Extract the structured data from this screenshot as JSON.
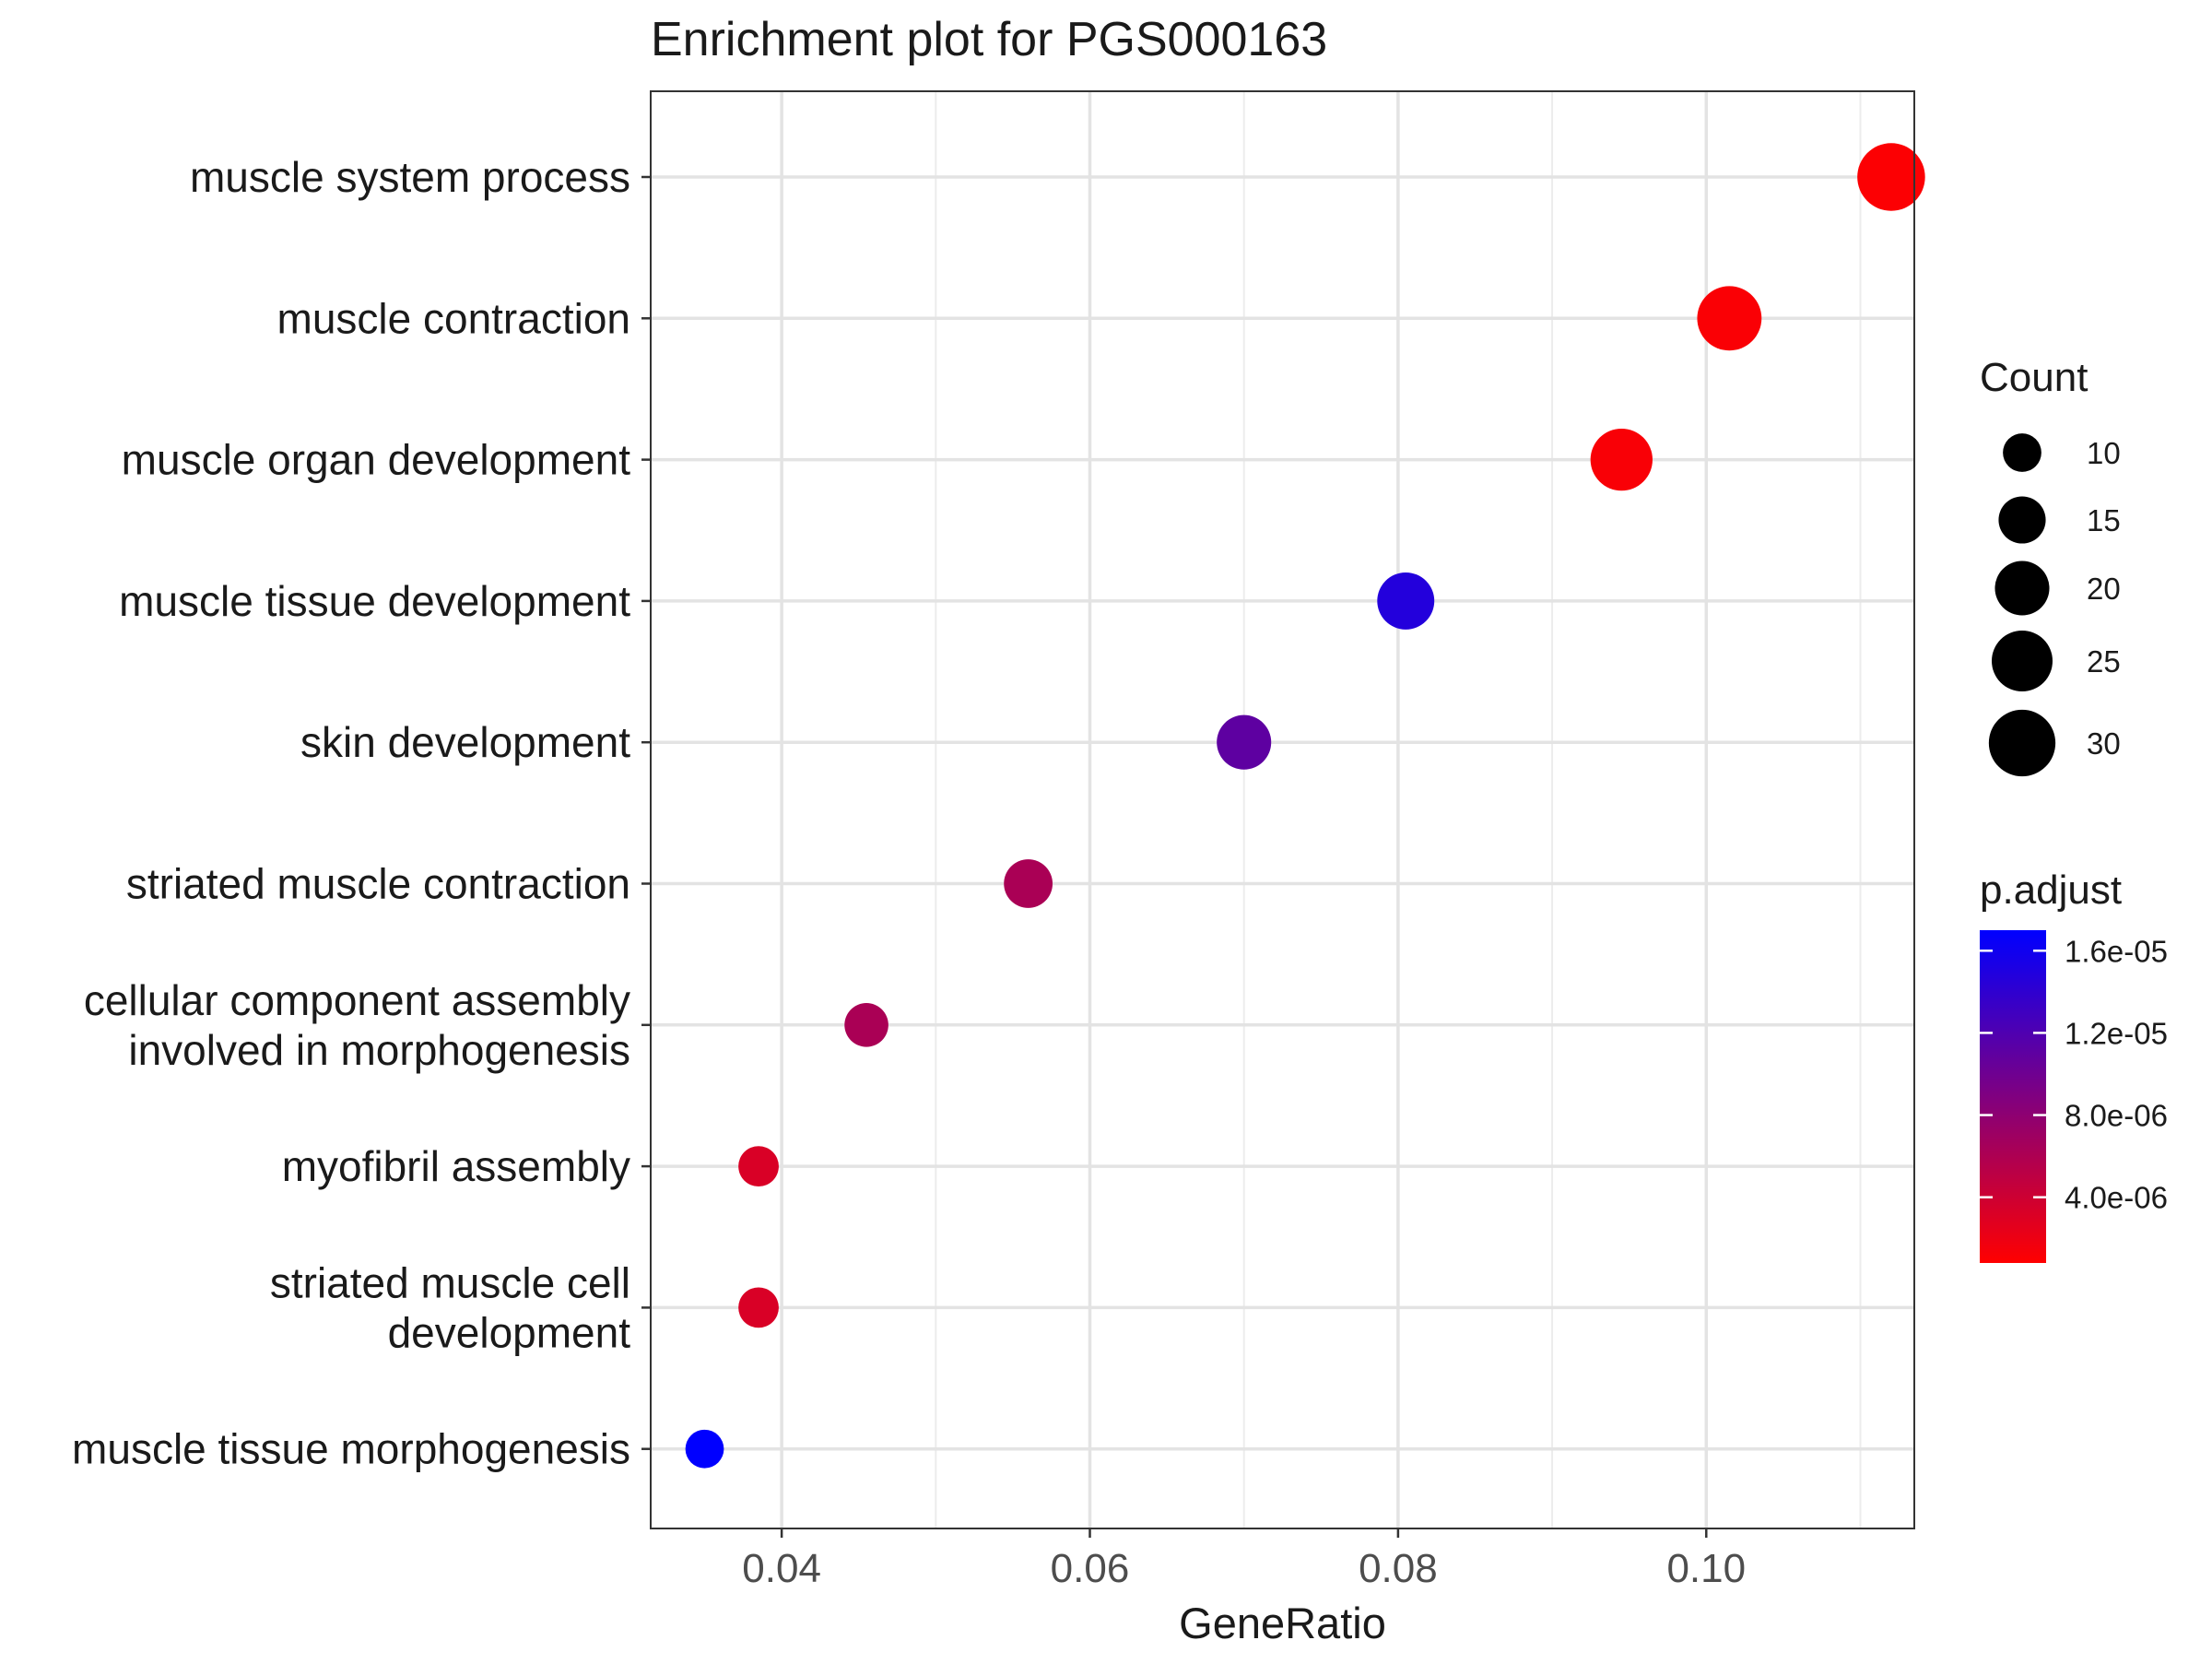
{
  "chart_data": {
    "type": "scatter",
    "title": "Enrichment plot for PGS000163",
    "xlabel": "GeneRatio",
    "ylabel": "",
    "xlim": [
      0.0315,
      0.1135
    ],
    "x_ticks": [
      {
        "value": 0.04,
        "label": "0.04"
      },
      {
        "value": 0.06,
        "label": "0.06"
      },
      {
        "value": 0.08,
        "label": "0.08"
      },
      {
        "value": 0.1,
        "label": "0.10"
      }
    ],
    "x_minor_ticks": [
      0.05,
      0.07,
      0.09,
      0.11
    ],
    "categories": [
      [
        "muscle system process"
      ],
      [
        "muscle contraction"
      ],
      [
        "muscle organ development"
      ],
      [
        "muscle tissue development"
      ],
      [
        "skin development"
      ],
      [
        "striated muscle contraction"
      ],
      [
        "cellular component assembly",
        "involved in morphogenesis"
      ],
      [
        "myofibril assembly"
      ],
      [
        "striated muscle cell",
        "development"
      ],
      [
        "muscle tissue morphogenesis"
      ]
    ],
    "points": [
      {
        "x": 0.112,
        "count": 31,
        "p_adjust": 1e-06
      },
      {
        "x": 0.1015,
        "count": 28,
        "p_adjust": 1.1e-06
      },
      {
        "x": 0.0945,
        "count": 26,
        "p_adjust": 1.2e-06
      },
      {
        "x": 0.0805,
        "count": 22,
        "p_adjust": 1.48e-05
      },
      {
        "x": 0.07,
        "count": 20,
        "p_adjust": 1.1e-05
      },
      {
        "x": 0.056,
        "count": 16,
        "p_adjust": 6.2e-06
      },
      {
        "x": 0.0455,
        "count": 13,
        "p_adjust": 6.2e-06
      },
      {
        "x": 0.0385,
        "count": 11,
        "p_adjust": 3.2e-06
      },
      {
        "x": 0.0385,
        "count": 11,
        "p_adjust": 3.2e-06
      },
      {
        "x": 0.035,
        "count": 10,
        "p_adjust": 1.72e-05
      }
    ],
    "size_legend": {
      "title": "Count",
      "breaks": [
        10,
        15,
        20,
        25,
        30
      ],
      "labels": [
        "10",
        "15",
        "20",
        "25",
        "30"
      ]
    },
    "color_legend": {
      "title": "p.adjust",
      "low_color": "#FF0000",
      "high_color": "#0000FF",
      "range": [
        8e-07,
        1.7e-05
      ],
      "breaks": [
        4e-06,
        8e-06,
        1.2e-05,
        1.6e-05
      ],
      "labels": [
        "4.0e-06",
        "8.0e-06",
        "1.2e-05",
        "1.6e-05"
      ]
    },
    "grid": true,
    "legend_position": "right"
  }
}
